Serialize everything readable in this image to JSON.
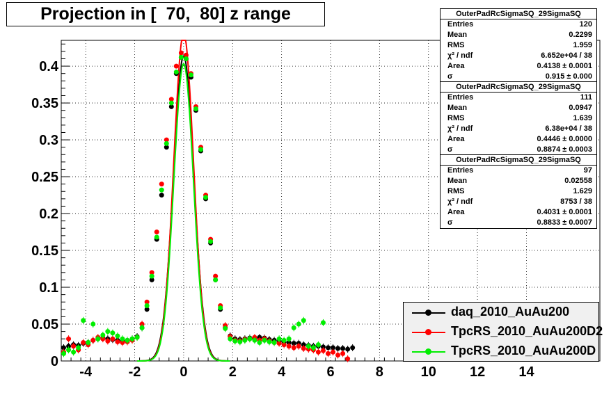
{
  "chart_data": {
    "type": "scatter",
    "title": "Projection in [  70,  80] z range",
    "xlim": [
      -5,
      17
    ],
    "ylim": [
      0,
      0.435
    ],
    "x_ticks": [
      "-4",
      "-2",
      "0",
      "2",
      "4",
      "6",
      "8",
      "10",
      "12",
      "14"
    ],
    "x_tick_values": [
      -4,
      -2,
      0,
      2,
      4,
      6,
      8,
      10,
      12,
      14
    ],
    "y_ticks": [
      "0",
      "0.05",
      "0.1",
      "0.15",
      "0.2",
      "0.25",
      "0.3",
      "0.35",
      "0.4"
    ],
    "y_tick_values": [
      0,
      0.05,
      0.1,
      0.15,
      0.2,
      0.25,
      0.3,
      0.35,
      0.4
    ],
    "grid": true,
    "legend_position": "bottom-right",
    "series": [
      {
        "name": "daq_2010_AuAu200",
        "color": "#000000",
        "x": [
          -4.9,
          -4.7,
          -4.5,
          -4.3,
          -4.1,
          -3.9,
          -3.7,
          -3.5,
          -3.3,
          -3.1,
          -2.9,
          -2.7,
          -2.5,
          -2.3,
          -2.1,
          -1.9,
          -1.7,
          -1.5,
          -1.3,
          -1.1,
          -0.9,
          -0.7,
          -0.5,
          -0.3,
          -0.1,
          0.1,
          0.3,
          0.5,
          0.7,
          0.9,
          1.1,
          1.3,
          1.5,
          1.7,
          1.9,
          2.1,
          2.3,
          2.5,
          2.7,
          2.9,
          3.1,
          3.3,
          3.5,
          3.7,
          3.9,
          4.1,
          4.3,
          4.5,
          4.7,
          4.9,
          5.1,
          5.3,
          5.5,
          5.7,
          5.9,
          6.1,
          6.3,
          6.5,
          6.7,
          6.9
        ],
        "y": [
          0.018,
          0.02,
          0.022,
          0.021,
          0.024,
          0.025,
          0.028,
          0.03,
          0.031,
          0.03,
          0.029,
          0.028,
          0.027,
          0.028,
          0.03,
          0.033,
          0.045,
          0.07,
          0.11,
          0.165,
          0.225,
          0.29,
          0.345,
          0.39,
          0.412,
          0.41,
          0.385,
          0.34,
          0.285,
          0.22,
          0.16,
          0.11,
          0.07,
          0.045,
          0.034,
          0.03,
          0.029,
          0.03,
          0.031,
          0.03,
          0.032,
          0.031,
          0.029,
          0.028,
          0.027,
          0.026,
          0.025,
          0.024,
          0.024,
          0.022,
          0.021,
          0.02,
          0.02,
          0.019,
          0.018,
          0.018,
          0.017,
          0.017,
          0.016,
          0.018
        ]
      },
      {
        "name": "TpcRS_2010_AuAu200D2",
        "color": "#ff0000",
        "x": [
          -4.9,
          -4.7,
          -4.5,
          -4.3,
          -4.1,
          -3.9,
          -3.7,
          -3.5,
          -3.3,
          -3.1,
          -2.9,
          -2.7,
          -2.5,
          -2.3,
          -2.1,
          -1.9,
          -1.7,
          -1.5,
          -1.3,
          -1.1,
          -0.9,
          -0.7,
          -0.5,
          -0.3,
          -0.1,
          0.1,
          0.3,
          0.5,
          0.7,
          0.9,
          1.1,
          1.3,
          1.5,
          1.7,
          1.9,
          2.1,
          2.3,
          2.5,
          2.7,
          2.9,
          3.1,
          3.3,
          3.5,
          3.7,
          3.9,
          4.1,
          4.3,
          4.5,
          4.7,
          4.9,
          5.1,
          5.3,
          5.5,
          5.7,
          5.9,
          6.1,
          6.3,
          6.5,
          6.7
        ],
        "y": [
          0.012,
          0.03,
          0.02,
          0.015,
          0.025,
          0.022,
          0.028,
          0.032,
          0.03,
          0.027,
          0.03,
          0.026,
          0.025,
          0.026,
          0.028,
          0.032,
          0.05,
          0.08,
          0.12,
          0.175,
          0.24,
          0.3,
          0.355,
          0.4,
          0.418,
          0.415,
          0.39,
          0.345,
          0.29,
          0.225,
          0.165,
          0.115,
          0.075,
          0.048,
          0.033,
          0.028,
          0.027,
          0.029,
          0.03,
          0.032,
          0.028,
          0.03,
          0.027,
          0.025,
          0.024,
          0.022,
          0.02,
          0.018,
          0.02,
          0.017,
          0.016,
          0.015,
          0.012,
          0.014,
          0.01,
          0.012,
          0.008,
          0.01,
          0.003
        ]
      },
      {
        "name": "TpcRS_2010_AuAu200D",
        "color": "#00ee00",
        "x": [
          -4.9,
          -4.7,
          -4.5,
          -4.3,
          -4.1,
          -3.9,
          -3.7,
          -3.5,
          -3.3,
          -3.1,
          -2.9,
          -2.7,
          -2.5,
          -2.3,
          -2.1,
          -1.9,
          -1.7,
          -1.5,
          -1.3,
          -1.1,
          -0.9,
          -0.7,
          -0.5,
          -0.3,
          -0.1,
          0.1,
          0.3,
          0.5,
          0.7,
          0.9,
          1.1,
          1.3,
          1.5,
          1.7,
          1.9,
          2.1,
          2.3,
          2.5,
          2.7,
          2.9,
          3.1,
          3.3,
          3.5,
          3.7,
          3.9,
          4.1,
          4.3,
          4.5,
          4.7,
          4.9,
          5.1,
          5.3,
          5.5,
          5.7
        ],
        "y": [
          0.01,
          0.015,
          0.012,
          0.018,
          0.055,
          0.025,
          0.05,
          0.03,
          0.035,
          0.04,
          0.038,
          0.034,
          0.03,
          0.028,
          0.03,
          0.032,
          0.045,
          0.075,
          0.115,
          0.168,
          0.232,
          0.295,
          0.35,
          0.392,
          0.412,
          0.41,
          0.388,
          0.342,
          0.287,
          0.222,
          0.162,
          0.11,
          0.072,
          0.044,
          0.03,
          0.027,
          0.026,
          0.028,
          0.03,
          0.028,
          0.025,
          0.028,
          0.026,
          0.025,
          0.03,
          0.028,
          0.03,
          0.045,
          0.05,
          0.055,
          0.02,
          0.018,
          0.022,
          0.052
        ]
      }
    ],
    "stat_boxes": [
      {
        "name": "OuterPadRcSigmaSQ_29SigmaSQ",
        "rows": [
          [
            "Entries",
            "120"
          ],
          [
            "Mean",
            "0.2299"
          ],
          [
            "RMS",
            "1.959"
          ],
          [
            "χ² / ndf",
            "6.652e+04 / 38"
          ],
          [
            "Area",
            "0.4138 ± 0.0001"
          ],
          [
            "σ",
            "0.915 ± 0.000"
          ]
        ]
      },
      {
        "name": "OuterPadRcSigmaSQ_29SigmaSQ",
        "rows": [
          [
            "Entries",
            "111"
          ],
          [
            "Mean",
            "0.0947"
          ],
          [
            "RMS",
            "1.639"
          ],
          [
            "χ² / ndf",
            "6.38e+04 / 38"
          ],
          [
            "Area",
            "0.4446 ± 0.0000"
          ],
          [
            "σ",
            "0.8874 ± 0.0003"
          ]
        ]
      },
      {
        "name": "OuterPadRcSigmaSQ_29SigmaSQ",
        "rows": [
          [
            "Entries",
            "97"
          ],
          [
            "Mean",
            "0.02558"
          ],
          [
            "RMS",
            "1.629"
          ],
          [
            "χ² / ndf",
            "8753 / 38"
          ],
          [
            "Area",
            "0.4031 ± 0.0001"
          ],
          [
            "σ",
            "0.8833 ± 0.0007"
          ]
        ]
      }
    ]
  }
}
